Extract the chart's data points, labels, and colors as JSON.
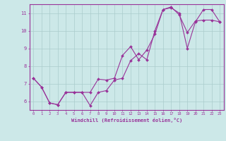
{
  "xlabel": "Windchill (Refroidissement éolien,°C)",
  "ylabel": "",
  "bg_color": "#cce8e8",
  "line_color": "#993399",
  "marker_color": "#993399",
  "grid_color": "#aacccc",
  "axis_color": "#993399",
  "tick_color": "#993399",
  "xlim": [
    -0.5,
    23.5
  ],
  "ylim": [
    5.5,
    11.5
  ],
  "xticks": [
    0,
    1,
    2,
    3,
    4,
    5,
    6,
    7,
    8,
    9,
    10,
    11,
    12,
    13,
    14,
    15,
    16,
    17,
    18,
    19,
    20,
    21,
    22,
    23
  ],
  "yticks": [
    6,
    7,
    8,
    9,
    10,
    11
  ],
  "series1_x": [
    0,
    1,
    2,
    3,
    4,
    5,
    6,
    7,
    8,
    9,
    10,
    11,
    12,
    13,
    14,
    15,
    16,
    17,
    18,
    19,
    20,
    21,
    22,
    23
  ],
  "series1_y": [
    7.3,
    6.8,
    5.9,
    5.8,
    6.5,
    6.5,
    6.5,
    5.75,
    6.5,
    6.6,
    7.2,
    7.3,
    8.3,
    8.7,
    8.35,
    10.0,
    11.2,
    11.3,
    11.0,
    9.0,
    10.5,
    11.2,
    11.2,
    10.5
  ],
  "series2_x": [
    0,
    1,
    2,
    3,
    4,
    5,
    6,
    7,
    8,
    9,
    10,
    11,
    12,
    13,
    14,
    15,
    16,
    17,
    18,
    19,
    20,
    21,
    22,
    23
  ],
  "series2_y": [
    7.3,
    6.8,
    5.9,
    5.8,
    6.5,
    6.5,
    6.5,
    6.5,
    7.25,
    7.2,
    7.3,
    8.6,
    9.1,
    8.35,
    8.9,
    9.8,
    11.2,
    11.35,
    10.9,
    9.9,
    10.55,
    10.6,
    10.6,
    10.5
  ]
}
